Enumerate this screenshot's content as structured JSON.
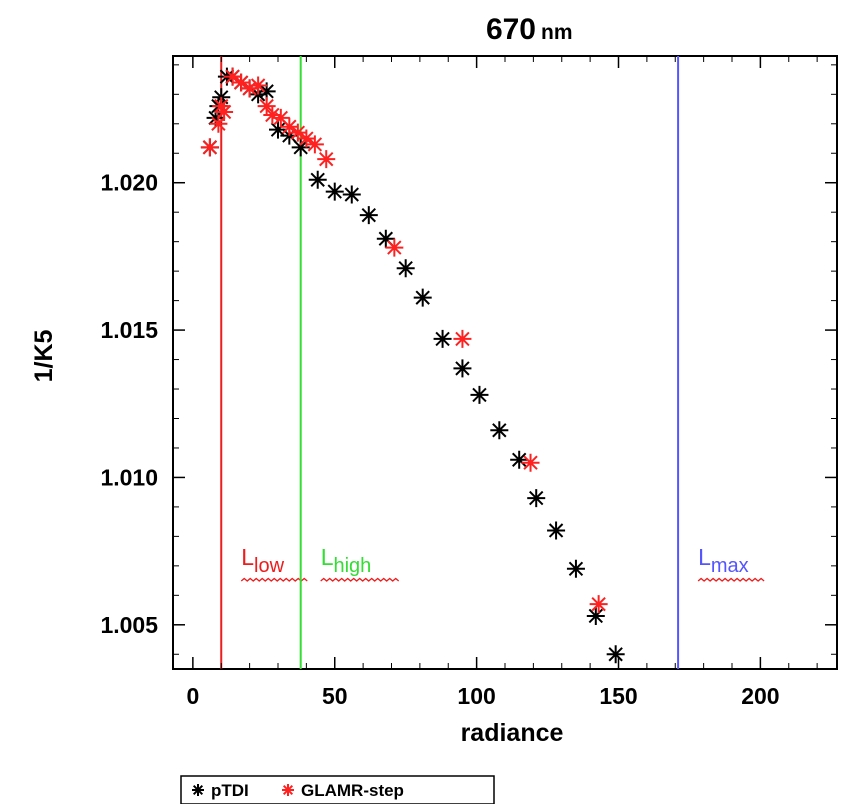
{
  "chart_data": {
    "type": "scatter",
    "title": "670",
    "title_unit": "nm",
    "xlabel": "radiance",
    "ylabel": "1/K5",
    "xlim": [
      -7,
      227
    ],
    "ylim": [
      1.0035,
      1.0243
    ],
    "xticks": [
      0,
      50,
      100,
      150,
      200
    ],
    "yticks": [
      1.005,
      1.01,
      1.015,
      1.02
    ],
    "ytick_labels": [
      "1.005",
      "1.010",
      "1.015",
      "1.020"
    ],
    "grid": false,
    "legend_position": "bottom-left",
    "series": [
      {
        "name": "pTDI",
        "color": "#000000",
        "marker": "asterisk",
        "x": [
          6,
          8,
          9,
          10,
          12,
          14,
          17,
          20,
          23,
          26,
          30,
          34,
          38,
          44,
          50,
          56,
          62,
          68,
          75,
          81,
          88,
          95,
          101,
          108,
          115,
          121,
          128,
          135,
          142,
          149
        ],
        "y": [
          1.0212,
          1.0222,
          1.0226,
          1.0229,
          1.0236,
          1.0236,
          1.0234,
          1.0232,
          1.023,
          1.0231,
          1.0218,
          1.0216,
          1.0212,
          1.0201,
          1.0197,
          1.0196,
          1.0189,
          1.0181,
          1.0171,
          1.0161,
          1.0147,
          1.0137,
          1.0128,
          1.0116,
          1.0106,
          1.0093,
          1.0082,
          1.0069,
          1.0053,
          1.004
        ]
      },
      {
        "name": "GLAMR-step",
        "color": "#ff2020",
        "marker": "asterisk",
        "x": [
          6,
          9,
          10,
          11,
          14,
          17,
          20,
          23,
          26,
          28,
          31,
          34,
          37,
          40,
          43,
          47,
          71,
          95,
          119,
          143
        ],
        "y": [
          1.0212,
          1.022,
          1.0226,
          1.0224,
          1.0236,
          1.0234,
          1.0232,
          1.0233,
          1.0226,
          1.0223,
          1.0222,
          1.0219,
          1.0217,
          1.0215,
          1.0213,
          1.0208,
          1.0178,
          1.0147,
          1.0105,
          1.0057
        ]
      }
    ],
    "vertical_lines": [
      {
        "x": 10,
        "color": "#ee1c1c",
        "label": "L",
        "sub": "low"
      },
      {
        "x": 38,
        "color": "#33dd33",
        "label": "L",
        "sub": "high"
      },
      {
        "x": 171,
        "color": "#5555ff",
        "label": "L",
        "sub": "max"
      }
    ]
  }
}
